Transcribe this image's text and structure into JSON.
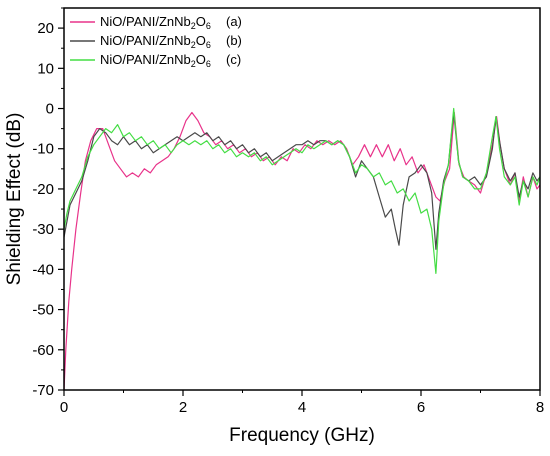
{
  "chart_data": {
    "type": "line",
    "title": "",
    "xlabel": "Frequency (GHz)",
    "ylabel": "Shielding Effect (dB)",
    "xlim": [
      0,
      8
    ],
    "ylim": [
      -70,
      25
    ],
    "xticks": [
      0,
      2,
      4,
      6,
      8
    ],
    "xtick_labels": [
      "0",
      "2",
      "4",
      "6",
      "8"
    ],
    "yticks": [
      -70,
      -60,
      -50,
      -40,
      -30,
      -20,
      -10,
      0,
      10,
      20
    ],
    "ytick_labels": [
      "-70",
      "-60",
      "-50",
      "-40",
      "-30",
      "-20",
      "-10",
      "0",
      "10",
      "20"
    ],
    "grid": false,
    "legend_position": "top-left",
    "series": [
      {
        "name_parts": [
          "NiO/PANI/ZnNb",
          "2",
          "O",
          "6"
        ],
        "tag": "(a)",
        "color": "#e8338a",
        "points": [
          [
            0,
            -70
          ],
          [
            0.03,
            -60
          ],
          [
            0.08,
            -48
          ],
          [
            0.13,
            -40
          ],
          [
            0.2,
            -30
          ],
          [
            0.28,
            -21
          ],
          [
            0.36,
            -13
          ],
          [
            0.45,
            -8
          ],
          [
            0.55,
            -5
          ],
          [
            0.65,
            -5
          ],
          [
            0.75,
            -9
          ],
          [
            0.85,
            -13
          ],
          [
            0.95,
            -15
          ],
          [
            1.05,
            -17
          ],
          [
            1.15,
            -16
          ],
          [
            1.25,
            -17
          ],
          [
            1.35,
            -15
          ],
          [
            1.45,
            -16
          ],
          [
            1.55,
            -14
          ],
          [
            1.65,
            -13
          ],
          [
            1.75,
            -12
          ],
          [
            1.85,
            -10
          ],
          [
            1.95,
            -7
          ],
          [
            2.05,
            -3
          ],
          [
            2.15,
            -1
          ],
          [
            2.25,
            -3
          ],
          [
            2.35,
            -6
          ],
          [
            2.45,
            -7
          ],
          [
            2.55,
            -9
          ],
          [
            2.65,
            -8
          ],
          [
            2.75,
            -10
          ],
          [
            2.85,
            -9
          ],
          [
            2.95,
            -11
          ],
          [
            3.05,
            -10
          ],
          [
            3.15,
            -12
          ],
          [
            3.25,
            -11
          ],
          [
            3.35,
            -13
          ],
          [
            3.45,
            -12
          ],
          [
            3.55,
            -14
          ],
          [
            3.65,
            -12
          ],
          [
            3.75,
            -13
          ],
          [
            3.85,
            -10
          ],
          [
            3.95,
            -11
          ],
          [
            4.05,
            -9
          ],
          [
            4.15,
            -10
          ],
          [
            4.25,
            -8
          ],
          [
            4.35,
            -9
          ],
          [
            4.45,
            -8
          ],
          [
            4.55,
            -9
          ],
          [
            4.65,
            -8
          ],
          [
            4.75,
            -10
          ],
          [
            4.85,
            -14
          ],
          [
            4.95,
            -12
          ],
          [
            5.05,
            -9
          ],
          [
            5.15,
            -12
          ],
          [
            5.25,
            -9
          ],
          [
            5.35,
            -12
          ],
          [
            5.45,
            -9
          ],
          [
            5.55,
            -13
          ],
          [
            5.65,
            -10
          ],
          [
            5.75,
            -14
          ],
          [
            5.85,
            -12
          ],
          [
            5.95,
            -16
          ],
          [
            6.05,
            -14
          ],
          [
            6.15,
            -18
          ],
          [
            6.25,
            -22
          ],
          [
            6.32,
            -23
          ],
          [
            6.4,
            -18
          ],
          [
            6.48,
            -15
          ],
          [
            6.56,
            -1
          ],
          [
            6.64,
            -14
          ],
          [
            6.72,
            -17
          ],
          [
            6.8,
            -18
          ],
          [
            6.9,
            -19
          ],
          [
            7.0,
            -21
          ],
          [
            7.1,
            -16
          ],
          [
            7.2,
            -9
          ],
          [
            7.27,
            -2
          ],
          [
            7.33,
            -9
          ],
          [
            7.4,
            -15
          ],
          [
            7.5,
            -19
          ],
          [
            7.58,
            -16
          ],
          [
            7.65,
            -23
          ],
          [
            7.72,
            -17
          ],
          [
            7.8,
            -22
          ],
          [
            7.88,
            -17
          ],
          [
            7.95,
            -20
          ],
          [
            8,
            -19
          ]
        ]
      },
      {
        "name_parts": [
          "NiO/PANI/ZnNb",
          "2",
          "O",
          "6"
        ],
        "tag": "(b)",
        "color": "#4a4a4a",
        "points": [
          [
            0,
            -32
          ],
          [
            0.05,
            -28
          ],
          [
            0.1,
            -24
          ],
          [
            0.2,
            -21
          ],
          [
            0.3,
            -18
          ],
          [
            0.4,
            -13
          ],
          [
            0.5,
            -7
          ],
          [
            0.6,
            -5
          ],
          [
            0.7,
            -6
          ],
          [
            0.8,
            -8
          ],
          [
            0.9,
            -9
          ],
          [
            1.0,
            -7
          ],
          [
            1.1,
            -9
          ],
          [
            1.2,
            -8
          ],
          [
            1.3,
            -10
          ],
          [
            1.4,
            -9
          ],
          [
            1.5,
            -11
          ],
          [
            1.6,
            -10
          ],
          [
            1.7,
            -9
          ],
          [
            1.8,
            -8
          ],
          [
            1.9,
            -7
          ],
          [
            2.0,
            -8
          ],
          [
            2.1,
            -7
          ],
          [
            2.2,
            -6
          ],
          [
            2.3,
            -7
          ],
          [
            2.4,
            -6
          ],
          [
            2.5,
            -8
          ],
          [
            2.6,
            -7
          ],
          [
            2.7,
            -9
          ],
          [
            2.8,
            -8
          ],
          [
            2.9,
            -10
          ],
          [
            3.0,
            -9
          ],
          [
            3.1,
            -11
          ],
          [
            3.2,
            -10
          ],
          [
            3.3,
            -12
          ],
          [
            3.4,
            -11
          ],
          [
            3.5,
            -13
          ],
          [
            3.6,
            -12
          ],
          [
            3.7,
            -11
          ],
          [
            3.8,
            -10
          ],
          [
            3.9,
            -9
          ],
          [
            4.0,
            -9
          ],
          [
            4.1,
            -8
          ],
          [
            4.2,
            -9
          ],
          [
            4.3,
            -8
          ],
          [
            4.4,
            -8
          ],
          [
            4.5,
            -9
          ],
          [
            4.6,
            -8
          ],
          [
            4.7,
            -9
          ],
          [
            4.8,
            -12
          ],
          [
            4.9,
            -17
          ],
          [
            5.0,
            -13
          ],
          [
            5.1,
            -15
          ],
          [
            5.2,
            -17
          ],
          [
            5.3,
            -22
          ],
          [
            5.4,
            -27
          ],
          [
            5.5,
            -25
          ],
          [
            5.57,
            -30
          ],
          [
            5.63,
            -34
          ],
          [
            5.7,
            -24
          ],
          [
            5.8,
            -17
          ],
          [
            5.9,
            -16
          ],
          [
            6.0,
            -14
          ],
          [
            6.1,
            -16
          ],
          [
            6.18,
            -21
          ],
          [
            6.25,
            -35
          ],
          [
            6.3,
            -26
          ],
          [
            6.38,
            -18
          ],
          [
            6.46,
            -14
          ],
          [
            6.55,
            -1
          ],
          [
            6.63,
            -13
          ],
          [
            6.7,
            -17
          ],
          [
            6.8,
            -18
          ],
          [
            6.9,
            -17
          ],
          [
            7.0,
            -19
          ],
          [
            7.1,
            -17
          ],
          [
            7.2,
            -10
          ],
          [
            7.26,
            -2
          ],
          [
            7.32,
            -8
          ],
          [
            7.4,
            -15
          ],
          [
            7.5,
            -18
          ],
          [
            7.58,
            -16
          ],
          [
            7.65,
            -22
          ],
          [
            7.72,
            -18
          ],
          [
            7.8,
            -20
          ],
          [
            7.88,
            -16
          ],
          [
            7.95,
            -18
          ],
          [
            8,
            -17
          ]
        ]
      },
      {
        "name_parts": [
          "NiO/PANI/ZnNb",
          "2",
          "O",
          "6"
        ],
        "tag": "(c)",
        "color": "#44dd44",
        "points": [
          [
            0,
            -30
          ],
          [
            0.05,
            -26
          ],
          [
            0.1,
            -23
          ],
          [
            0.2,
            -20
          ],
          [
            0.3,
            -17
          ],
          [
            0.4,
            -12
          ],
          [
            0.5,
            -9
          ],
          [
            0.6,
            -7
          ],
          [
            0.7,
            -5
          ],
          [
            0.8,
            -6
          ],
          [
            0.9,
            -4
          ],
          [
            1.0,
            -7
          ],
          [
            1.1,
            -6
          ],
          [
            1.2,
            -8
          ],
          [
            1.3,
            -7
          ],
          [
            1.4,
            -9
          ],
          [
            1.5,
            -8
          ],
          [
            1.6,
            -10
          ],
          [
            1.7,
            -9
          ],
          [
            1.8,
            -11
          ],
          [
            1.9,
            -9
          ],
          [
            2.0,
            -8
          ],
          [
            2.1,
            -9
          ],
          [
            2.2,
            -8
          ],
          [
            2.3,
            -9
          ],
          [
            2.4,
            -8
          ],
          [
            2.5,
            -10
          ],
          [
            2.6,
            -9
          ],
          [
            2.7,
            -11
          ],
          [
            2.8,
            -10
          ],
          [
            2.9,
            -12
          ],
          [
            3.0,
            -11
          ],
          [
            3.1,
            -12
          ],
          [
            3.2,
            -11
          ],
          [
            3.3,
            -13
          ],
          [
            3.4,
            -12
          ],
          [
            3.5,
            -14
          ],
          [
            3.6,
            -13
          ],
          [
            3.7,
            -12
          ],
          [
            3.8,
            -11
          ],
          [
            3.9,
            -10
          ],
          [
            4.0,
            -11
          ],
          [
            4.1,
            -9
          ],
          [
            4.2,
            -10
          ],
          [
            4.3,
            -9
          ],
          [
            4.4,
            -8
          ],
          [
            4.5,
            -9
          ],
          [
            4.6,
            -8
          ],
          [
            4.7,
            -9
          ],
          [
            4.8,
            -12
          ],
          [
            4.9,
            -16
          ],
          [
            5.0,
            -14
          ],
          [
            5.1,
            -15
          ],
          [
            5.2,
            -17
          ],
          [
            5.3,
            -16
          ],
          [
            5.4,
            -19
          ],
          [
            5.5,
            -18
          ],
          [
            5.6,
            -21
          ],
          [
            5.7,
            -20
          ],
          [
            5.8,
            -23
          ],
          [
            5.9,
            -21
          ],
          [
            6.0,
            -26
          ],
          [
            6.1,
            -25
          ],
          [
            6.18,
            -30
          ],
          [
            6.25,
            -41
          ],
          [
            6.3,
            -28
          ],
          [
            6.38,
            -19
          ],
          [
            6.46,
            -14
          ],
          [
            6.55,
            0
          ],
          [
            6.63,
            -13
          ],
          [
            6.7,
            -17
          ],
          [
            6.8,
            -18
          ],
          [
            6.9,
            -20
          ],
          [
            7.0,
            -20
          ],
          [
            7.1,
            -16
          ],
          [
            7.2,
            -7
          ],
          [
            7.26,
            -2
          ],
          [
            7.32,
            -10
          ],
          [
            7.4,
            -17
          ],
          [
            7.5,
            -19
          ],
          [
            7.58,
            -17
          ],
          [
            7.65,
            -24
          ],
          [
            7.72,
            -18
          ],
          [
            7.8,
            -22
          ],
          [
            7.88,
            -17
          ],
          [
            7.95,
            -19
          ],
          [
            8,
            -17
          ]
        ]
      }
    ]
  }
}
